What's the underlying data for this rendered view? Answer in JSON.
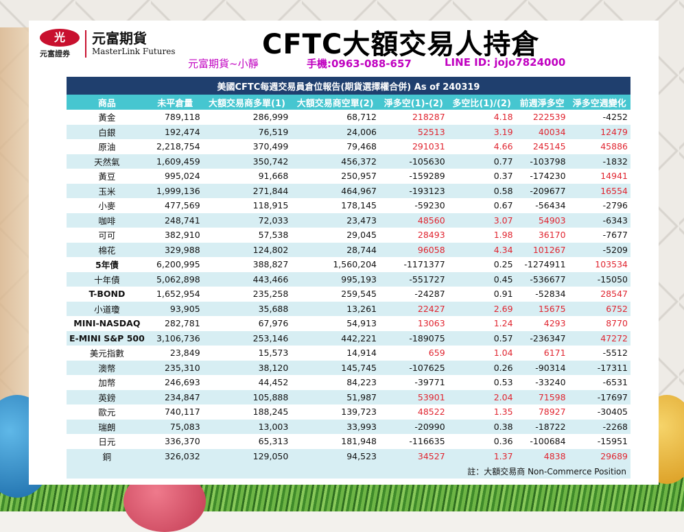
{
  "header": {
    "logo_mark": "光",
    "logo_sub": "元富證券",
    "logo_zh": "元富期貨",
    "logo_en": "MasterLink Futures",
    "title": "CFTC大額交易人持倉",
    "contact_name": "元富期貨~小靜",
    "contact_phone": "手機:0963-088-657",
    "contact_line": "LINE ID: jojo7824000"
  },
  "table": {
    "report_title": "美國CFTC每週交易員倉位報告(期貨選擇權合併) As of  240319",
    "columns": [
      "商品",
      "未平倉量",
      "大額交易商多單(1)",
      "大額交易商空單(2)",
      "淨多空(1)-(2)",
      "多空比(1)/(2)",
      "前週淨多空",
      "淨多空週變化"
    ],
    "rows": [
      {
        "name": "黃金",
        "oi": "789,118",
        "long": "286,999",
        "short": "68,712",
        "net": "218287",
        "ratio": "4.18",
        "prev": "222539",
        "chg": "-4252",
        "bold": false
      },
      {
        "name": "白銀",
        "oi": "192,474",
        "long": "76,519",
        "short": "24,006",
        "net": "52513",
        "ratio": "3.19",
        "prev": "40034",
        "chg": "12479",
        "bold": false
      },
      {
        "name": "原油",
        "oi": "2,218,754",
        "long": "370,499",
        "short": "79,468",
        "net": "291031",
        "ratio": "4.66",
        "prev": "245145",
        "chg": "45886",
        "bold": false
      },
      {
        "name": "天然氣",
        "oi": "1,609,459",
        "long": "350,742",
        "short": "456,372",
        "net": "-105630",
        "ratio": "0.77",
        "prev": "-103798",
        "chg": "-1832",
        "bold": false
      },
      {
        "name": "黃豆",
        "oi": "995,024",
        "long": "91,668",
        "short": "250,957",
        "net": "-159289",
        "ratio": "0.37",
        "prev": "-174230",
        "chg": "14941",
        "bold": false
      },
      {
        "name": "玉米",
        "oi": "1,999,136",
        "long": "271,844",
        "short": "464,967",
        "net": "-193123",
        "ratio": "0.58",
        "prev": "-209677",
        "chg": "16554",
        "bold": false
      },
      {
        "name": "小麥",
        "oi": "477,569",
        "long": "118,915",
        "short": "178,145",
        "net": "-59230",
        "ratio": "0.67",
        "prev": "-56434",
        "chg": "-2796",
        "bold": false
      },
      {
        "name": "咖啡",
        "oi": "248,741",
        "long": "72,033",
        "short": "23,473",
        "net": "48560",
        "ratio": "3.07",
        "prev": "54903",
        "chg": "-6343",
        "bold": false
      },
      {
        "name": "可可",
        "oi": "382,910",
        "long": "57,538",
        "short": "29,045",
        "net": "28493",
        "ratio": "1.98",
        "prev": "36170",
        "chg": "-7677",
        "bold": false
      },
      {
        "name": "棉花",
        "oi": "329,988",
        "long": "124,802",
        "short": "28,744",
        "net": "96058",
        "ratio": "4.34",
        "prev": "101267",
        "chg": "-5209",
        "bold": false
      },
      {
        "name": "5年債",
        "oi": "6,200,995",
        "long": "388,827",
        "short": "1,560,204",
        "net": "-1171377",
        "ratio": "0.25",
        "prev": "-1274911",
        "chg": "103534",
        "bold": true
      },
      {
        "name": "十年債",
        "oi": "5,062,898",
        "long": "443,466",
        "short": "995,193",
        "net": "-551727",
        "ratio": "0.45",
        "prev": "-536677",
        "chg": "-15050",
        "bold": false
      },
      {
        "name": "T-BOND",
        "oi": "1,652,954",
        "long": "235,258",
        "short": "259,545",
        "net": "-24287",
        "ratio": "0.91",
        "prev": "-52834",
        "chg": "28547",
        "bold": true
      },
      {
        "name": "小道瓊",
        "oi": "93,905",
        "long": "35,688",
        "short": "13,261",
        "net": "22427",
        "ratio": "2.69",
        "prev": "15675",
        "chg": "6752",
        "bold": false
      },
      {
        "name": "MINI-NASDAQ",
        "oi": "282,781",
        "long": "67,976",
        "short": "54,913",
        "net": "13063",
        "ratio": "1.24",
        "prev": "4293",
        "chg": "8770",
        "bold": true
      },
      {
        "name": "E-MINI S&P 500",
        "oi": "3,106,736",
        "long": "253,146",
        "short": "442,221",
        "net": "-189075",
        "ratio": "0.57",
        "prev": "-236347",
        "chg": "47272",
        "bold": true
      },
      {
        "name": "美元指數",
        "oi": "23,849",
        "long": "15,573",
        "short": "14,914",
        "net": "659",
        "ratio": "1.04",
        "prev": "6171",
        "chg": "-5512",
        "bold": false
      },
      {
        "name": "澳幣",
        "oi": "235,310",
        "long": "38,120",
        "short": "145,745",
        "net": "-107625",
        "ratio": "0.26",
        "prev": "-90314",
        "chg": "-17311",
        "bold": false
      },
      {
        "name": "加幣",
        "oi": "246,693",
        "long": "44,452",
        "short": "84,223",
        "net": "-39771",
        "ratio": "0.53",
        "prev": "-33240",
        "chg": "-6531",
        "bold": false
      },
      {
        "name": "英鎊",
        "oi": "234,847",
        "long": "105,888",
        "short": "51,987",
        "net": "53901",
        "ratio": "2.04",
        "prev": "71598",
        "chg": "-17697",
        "bold": false
      },
      {
        "name": "歐元",
        "oi": "740,117",
        "long": "188,245",
        "short": "139,723",
        "net": "48522",
        "ratio": "1.35",
        "prev": "78927",
        "chg": "-30405",
        "bold": false
      },
      {
        "name": "瑞朗",
        "oi": "75,083",
        "long": "13,003",
        "short": "33,993",
        "net": "-20990",
        "ratio": "0.38",
        "prev": "-18722",
        "chg": "-2268",
        "bold": false
      },
      {
        "name": "日元",
        "oi": "336,370",
        "long": "65,313",
        "short": "181,948",
        "net": "-116635",
        "ratio": "0.36",
        "prev": "-100684",
        "chg": "-15951",
        "bold": false
      },
      {
        "name": "銅",
        "oi": "326,032",
        "long": "129,050",
        "short": "94,523",
        "net": "34527",
        "ratio": "1.37",
        "prev": "4838",
        "chg": "29689",
        "bold": false
      }
    ],
    "note": "註：大額交易商 Non-Commerce Position"
  },
  "colors": {
    "positive": "#e0242f",
    "negative": "#111111",
    "header_bg": "#46c6d0",
    "title_bg": "#1f3f6e",
    "stripe": "#d7eef3"
  }
}
